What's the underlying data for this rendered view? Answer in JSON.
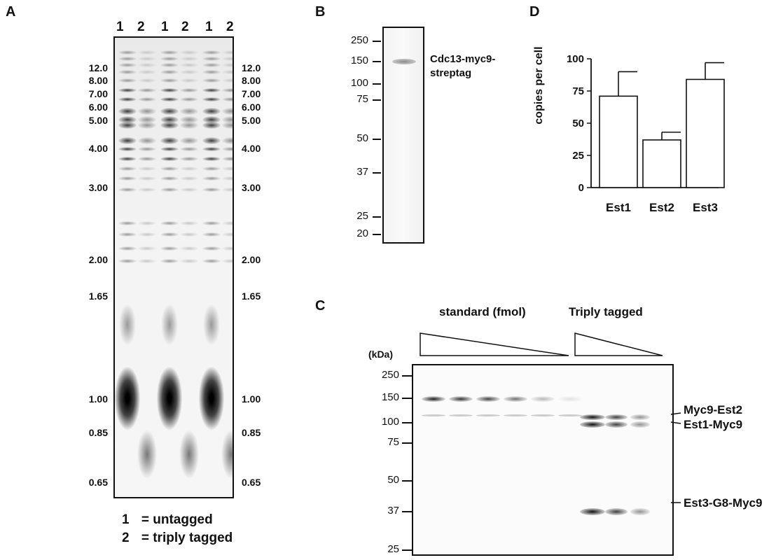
{
  "panels": {
    "A": {
      "label": "A",
      "lane_labels": [
        "1",
        "2",
        "1",
        "2",
        "1",
        "2"
      ],
      "markers": [
        "12.0",
        "8.00",
        "7.00",
        "6.00",
        "5.00",
        "4.00",
        "3.00",
        "2.00",
        "1.65",
        "1.00",
        "0.85",
        "0.65"
      ],
      "legend": [
        {
          "num": "1",
          "text": "= untagged"
        },
        {
          "num": "2",
          "text": "= triply tagged"
        }
      ]
    },
    "B": {
      "label": "B",
      "markers": [
        "250",
        "150",
        "100",
        "75",
        "50",
        "37",
        "25",
        "20"
      ],
      "band_label_line1": "Cdc13-myc9-",
      "band_label_line2": "streptag"
    },
    "C": {
      "label": "C",
      "standard_label": "standard (fmol)",
      "triply_label": "Triply tagged",
      "kda_label": "(kDa)",
      "markers": [
        "250",
        "150",
        "100",
        "75",
        "50",
        "37",
        "25"
      ],
      "band_labels": [
        "Myc9-Est2",
        "Est1-Myc9",
        "Est3-G8-Myc9"
      ]
    },
    "D": {
      "label": "D"
    }
  },
  "chart_data": {
    "type": "bar",
    "categories": [
      "Est1",
      "Est2",
      "Est3"
    ],
    "values": [
      71,
      37,
      84
    ],
    "errors": [
      19,
      6,
      13
    ],
    "ylabel": "copies per cell",
    "ylim": [
      0,
      100
    ],
    "yticks": [
      0,
      25,
      50,
      75,
      100
    ],
    "bar_color": "#ffffff",
    "grid": false
  }
}
